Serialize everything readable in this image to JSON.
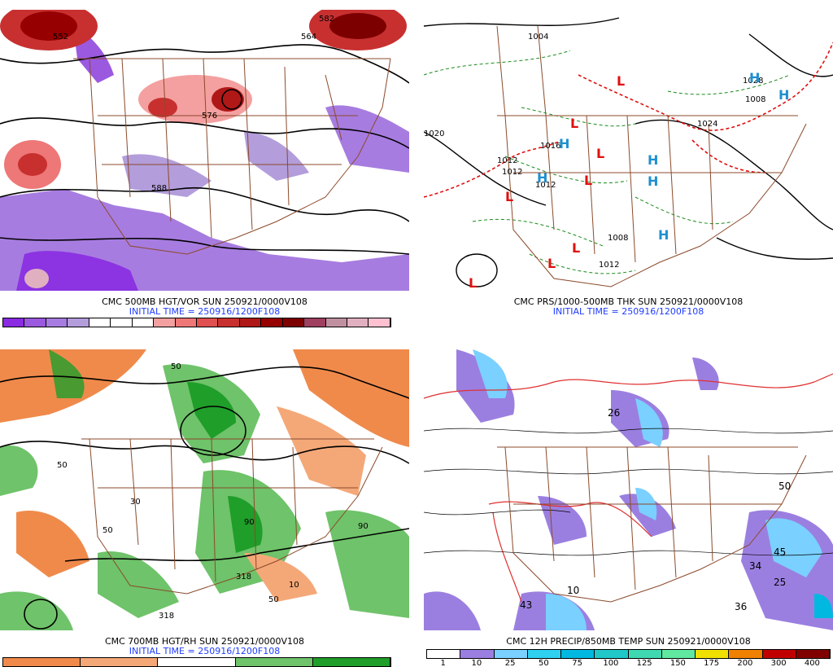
{
  "panels": [
    {
      "id": "tl",
      "caption": "CMC 500MB HGT/VOR SUN 250921/0000V108",
      "initial": "INITIAL TIME = 250916/1200F108",
      "ticks": [
        "0",
        "2",
        "4",
        "6",
        "8",
        "10",
        "12",
        "14",
        "16",
        "18",
        "20",
        "22",
        "24",
        "26",
        "28",
        "34",
        "40",
        "46"
      ],
      "colors": [
        "#8a2be2",
        "#9b59e0",
        "#a77ce0",
        "#b39ddb",
        "#ffffff",
        "#ffffff",
        "#ffffff",
        "#f4a0a0",
        "#ee7777",
        "#e05050",
        "#c83030",
        "#b01818",
        "#960000",
        "#7d0000",
        "#a04060",
        "#c090a0",
        "#e0b0c0",
        "#ffc0d0"
      ],
      "labels": [
        "552",
        "564",
        "576",
        "588",
        "582"
      ]
    },
    {
      "id": "tr",
      "caption": "CMC PRS/1000-500MB THK SUN 250921/0000V108",
      "initial": "INITIAL TIME = 250916/1200F108",
      "labels": [
        "1004",
        "1020",
        "1028",
        "1024",
        "1012",
        "1016",
        "1012",
        "1012",
        "1008",
        "1012",
        "1008"
      ],
      "centers": [
        "L",
        "L",
        "L",
        "L",
        "L",
        "L",
        "L",
        "L",
        "H",
        "H",
        "H",
        "H",
        "H",
        "H",
        "H"
      ]
    },
    {
      "id": "bl",
      "caption": "CMC 700MB HGT/RH SUN 250921/0000V108",
      "initial": "INITIAL TIME = 250916/1200F108",
      "ticks": [
        "10",
        "30",
        "50",
        "70",
        "90"
      ],
      "colors": [
        "#f08a4b",
        "#f4a878",
        "#ffffff",
        "#6fc36a",
        "#1f9e2a"
      ],
      "labels": [
        "50",
        "50",
        "50",
        "50",
        "90",
        "90",
        "318",
        "318",
        "10",
        "30"
      ]
    },
    {
      "id": "br",
      "caption": "CMC 12H PRECIP/850MB TEMP SUN 250921/0000V108",
      "ticks": [
        "1",
        "10",
        "25",
        "50",
        "75",
        "100",
        "125",
        "150",
        "175",
        "200",
        "300",
        "400"
      ],
      "colors": [
        "#ffffff",
        "#9b7fe0",
        "#7ad0ff",
        "#30d0f0",
        "#00b8e0",
        "#20c8c8",
        "#40d8b0",
        "#60e8a0",
        "#f0e000",
        "#f08000",
        "#c00000",
        "#800000"
      ],
      "labels": [
        "26",
        "45",
        "50",
        "36",
        "34",
        "43",
        "25",
        "10"
      ]
    }
  ]
}
